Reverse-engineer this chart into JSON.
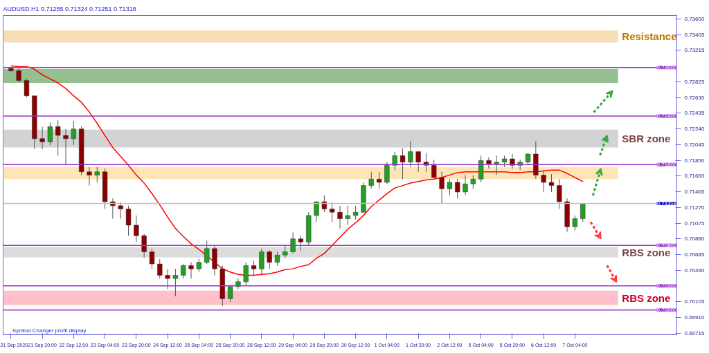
{
  "chart_data": {
    "type": "candlestick",
    "title": "AUDUSD.H1  0.71255 0.71324 0.71251 0.71318",
    "categories": [
      "21 Sep 2020",
      null,
      null,
      null,
      "21 Sep 20:00",
      null,
      null,
      null,
      "22 Sep 12:00",
      null,
      null,
      null,
      "23 Sep 04:00",
      null,
      null,
      null,
      "23 Sep 20:00",
      null,
      null,
      null,
      "24 Sep 12:00",
      null,
      null,
      null,
      "25 Sep 04:00",
      null,
      null,
      null,
      "25 Sep 20:00",
      null,
      null,
      null,
      "28 Sep 12:00",
      null,
      null,
      null,
      "29 Sep 04:00",
      null,
      null,
      null,
      "29 Sep 20:00",
      null,
      null,
      null,
      "30 Sep 12:00",
      null,
      null,
      null,
      "1 Oct 04:00",
      null,
      null,
      null,
      "1 Oct 20:00",
      null,
      null,
      null,
      "2 Oct 12:00",
      null,
      null,
      null,
      "5 Oct 04:00",
      null,
      null,
      null,
      "5 Oct 20:00",
      null,
      null,
      null,
      "6 Oct 12:00",
      null,
      null,
      null,
      "7 Oct 04:00",
      null
    ],
    "ohlc": [
      [
        0.7299,
        0.73,
        0.7294,
        0.7296
      ],
      [
        0.7296,
        0.73,
        0.7282,
        0.7284
      ],
      [
        0.7284,
        0.7286,
        0.7263,
        0.7265
      ],
      [
        0.7265,
        0.7265,
        0.7199,
        0.7212
      ],
      [
        0.7212,
        0.7227,
        0.7199,
        0.7208
      ],
      [
        0.7208,
        0.7232,
        0.7204,
        0.7227
      ],
      [
        0.7227,
        0.7235,
        0.7191,
        0.7216
      ],
      [
        0.7216,
        0.7224,
        0.7179,
        0.7212
      ],
      [
        0.7212,
        0.7234,
        0.7204,
        0.7224
      ],
      [
        0.7224,
        0.7227,
        0.7167,
        0.7171
      ],
      [
        0.7171,
        0.7177,
        0.7154,
        0.7167
      ],
      [
        0.7167,
        0.7177,
        0.7158,
        0.7171
      ],
      [
        0.7171,
        0.7175,
        0.7125,
        0.7134
      ],
      [
        0.7134,
        0.7138,
        0.7113,
        0.7129
      ],
      [
        0.7129,
        0.7133,
        0.7113,
        0.7125
      ],
      [
        0.7125,
        0.7129,
        0.7092,
        0.7105
      ],
      [
        0.7105,
        0.7117,
        0.7084,
        0.7092
      ],
      [
        0.7092,
        0.7094,
        0.7065,
        0.7072
      ],
      [
        0.7072,
        0.7076,
        0.7051,
        0.7057
      ],
      [
        0.7057,
        0.7063,
        0.7039,
        0.7043
      ],
      [
        0.7043,
        0.7051,
        0.7026,
        0.7039
      ],
      [
        0.7039,
        0.7051,
        0.7017,
        0.7043
      ],
      [
        0.7043,
        0.7057,
        0.7039,
        0.7055
      ],
      [
        0.7055,
        0.7059,
        0.7039,
        0.7051
      ],
      [
        0.7051,
        0.7063,
        0.7047,
        0.7059
      ],
      [
        0.7059,
        0.7086,
        0.7057,
        0.7076
      ],
      [
        0.7076,
        0.708,
        0.7043,
        0.7051
      ],
      [
        0.7051,
        0.7055,
        0.7005,
        0.7014
      ],
      [
        0.7014,
        0.703,
        0.701,
        0.7029
      ],
      [
        0.7029,
        0.7039,
        0.7026,
        0.7035
      ],
      [
        0.7035,
        0.7059,
        0.7031,
        0.7055
      ],
      [
        0.7055,
        0.7061,
        0.7043,
        0.7051
      ],
      [
        0.7051,
        0.7076,
        0.7043,
        0.7072
      ],
      [
        0.7072,
        0.7074,
        0.7051,
        0.7059
      ],
      [
        0.7059,
        0.7072,
        0.7055,
        0.7068
      ],
      [
        0.7068,
        0.708,
        0.7064,
        0.7072
      ],
      [
        0.7072,
        0.7096,
        0.707,
        0.7088
      ],
      [
        0.7088,
        0.7092,
        0.7073,
        0.7084
      ],
      [
        0.7084,
        0.7121,
        0.708,
        0.7117
      ],
      [
        0.7117,
        0.7134,
        0.7109,
        0.7134
      ],
      [
        0.7134,
        0.7142,
        0.7121,
        0.7125
      ],
      [
        0.7125,
        0.7133,
        0.7109,
        0.7121
      ],
      [
        0.7121,
        0.7129,
        0.7101,
        0.7113
      ],
      [
        0.7113,
        0.7129,
        0.7105,
        0.7117
      ],
      [
        0.7117,
        0.7129,
        0.7112,
        0.7121
      ],
      [
        0.7121,
        0.7158,
        0.712,
        0.7154
      ],
      [
        0.7154,
        0.7171,
        0.715,
        0.7162
      ],
      [
        0.7162,
        0.7171,
        0.715,
        0.7158
      ],
      [
        0.7158,
        0.7183,
        0.7156,
        0.7179
      ],
      [
        0.7179,
        0.7196,
        0.7173,
        0.7191
      ],
      [
        0.7191,
        0.72,
        0.7162,
        0.7183
      ],
      [
        0.7183,
        0.7209,
        0.7177,
        0.7196
      ],
      [
        0.7196,
        0.7196,
        0.7171,
        0.7183
      ],
      [
        0.7183,
        0.7194,
        0.7171,
        0.7179
      ],
      [
        0.7179,
        0.7186,
        0.7163,
        0.7164
      ],
      [
        0.7164,
        0.7171,
        0.7132,
        0.715
      ],
      [
        0.715,
        0.7162,
        0.7142,
        0.7158
      ],
      [
        0.7158,
        0.7162,
        0.7138,
        0.7146
      ],
      [
        0.7146,
        0.7167,
        0.7142,
        0.7156
      ],
      [
        0.7156,
        0.7167,
        0.715,
        0.7162
      ],
      [
        0.7162,
        0.7191,
        0.7158,
        0.7185
      ],
      [
        0.7185,
        0.7189,
        0.7175,
        0.7181
      ],
      [
        0.7181,
        0.7191,
        0.7167,
        0.7183
      ],
      [
        0.7183,
        0.7191,
        0.7177,
        0.7187
      ],
      [
        0.7187,
        0.7193,
        0.7175,
        0.7179
      ],
      [
        0.7179,
        0.7186,
        0.7173,
        0.7183
      ],
      [
        0.7183,
        0.7194,
        0.7179,
        0.7193
      ],
      [
        0.7193,
        0.7209,
        0.7162,
        0.7167
      ],
      [
        0.7167,
        0.7173,
        0.7146,
        0.7158
      ],
      [
        0.7158,
        0.7168,
        0.7146,
        0.7154
      ],
      [
        0.7154,
        0.7162,
        0.7125,
        0.7134
      ],
      [
        0.7134,
        0.7138,
        0.7097,
        0.7103
      ],
      [
        0.7103,
        0.7117,
        0.7098,
        0.7113
      ],
      [
        0.7113,
        0.71324,
        0.7109,
        0.71318
      ]
    ],
    "colors": [
      "#8b0000",
      "#8b0000",
      "#8b0000",
      "#8b0000",
      "#8b0000",
      "#22a022",
      "#8b0000",
      "#8b0000",
      "#22a022",
      "#8b0000",
      "#8b0000",
      "#22a022",
      "#8b0000",
      "#8b0000",
      "#8b0000",
      "#8b0000",
      "#8b0000",
      "#8b0000",
      "#8b0000",
      "#8b0000",
      "#8b0000",
      "#22a022",
      "#22a022",
      "#8b0000",
      "#22a022",
      "#22a022",
      "#8b0000",
      "#8b0000",
      "#22a022",
      "#22a022",
      "#22a022",
      "#8b0000",
      "#22a022",
      "#8b0000",
      "#22a022",
      "#22a022",
      "#22a022",
      "#8b0000",
      "#22a022",
      "#22a022",
      "#8b0000",
      "#8b0000",
      "#8b0000",
      "#22a022",
      "#22a022",
      "#22a022",
      "#22a022",
      "#8b0000",
      "#22a022",
      "#22a022",
      "#8b0000",
      "#22a022",
      "#8b0000",
      "#8b0000",
      "#8b0000",
      "#8b0000",
      "#22a022",
      "#8b0000",
      "#22a022",
      "#22a022",
      "#22a022",
      "#8b0000",
      "#22a022",
      "#22a022",
      "#8b0000",
      "#22a022",
      "#22a022",
      "#8b0000",
      "#8b0000",
      "#8b0000",
      "#8b0000",
      "#8b0000",
      "#22a022",
      "#22a022"
    ],
    "series": [
      {
        "type": "line",
        "color": "#ff0000",
        "values": [
          0.7302,
          0.7301,
          0.7301,
          0.7298,
          0.7291,
          0.7286,
          0.7281,
          0.7274,
          0.7265,
          0.7257,
          0.7245,
          0.7231,
          0.7216,
          0.7201,
          0.719,
          0.7179,
          0.7167,
          0.7157,
          0.7144,
          0.713,
          0.7115,
          0.7101,
          0.7091,
          0.7082,
          0.7075,
          0.7067,
          0.7059,
          0.7051,
          0.7047,
          0.7044,
          0.7043,
          0.7043,
          0.7044,
          0.7045,
          0.7047,
          0.705,
          0.7051,
          0.7054,
          0.7056,
          0.7064,
          0.707,
          0.708,
          0.709,
          0.71,
          0.7108,
          0.7117,
          0.7128,
          0.7136,
          0.7144,
          0.7151,
          0.7154,
          0.7157,
          0.7159,
          0.7161,
          0.7162,
          0.7164,
          0.7167,
          0.717,
          0.7171,
          0.7171,
          0.7171,
          0.7171,
          0.7171,
          0.7171,
          0.717,
          0.717,
          0.7171,
          0.7171,
          0.7172,
          0.7173,
          0.7173,
          0.7169,
          0.7164,
          0.7159
        ]
      }
    ],
    "ylim": [
      0.69695,
      0.73643
    ],
    "yticks": [
      {
        "value": 0.736,
        "label": "0.73600"
      },
      0.73405,
      0.73215,
      0.72825,
      {
        "value": 0.7263,
        "label": "0.72630"
      },
      0.72435,
      {
        "value": 0.7224,
        "label": "0.72240"
      },
      0.72045,
      {
        "value": 0.7185,
        "label": "0.71850"
      },
      {
        "value": 0.7166,
        "label": "0.71660"
      },
      0.71465,
      {
        "value": 0.7127,
        "label": "0.71270"
      },
      0.71075,
      {
        "value": 0.7088,
        "label": "0.70880"
      },
      0.70685,
      {
        "value": 0.7049,
        "label": "0.70490"
      },
      0.70105,
      {
        "value": 0.6991,
        "label": "0.69910"
      },
      0.69715
    ],
    "ref_lines": [
      {
        "axis": "y",
        "value": 0.73,
        "label": "0.73000",
        "color": "#9933cc"
      },
      {
        "axis": "y",
        "value": 0.724,
        "label": "0.72400",
        "color": "#9933cc"
      },
      {
        "axis": "y",
        "value": 0.718,
        "label": "0.71800",
        "color": "#9933cc"
      },
      {
        "axis": "y",
        "value": 0.71318,
        "label": "0.71318",
        "color": "#c0c0c0"
      },
      {
        "axis": "y",
        "value": 0.708,
        "label": "0.70800",
        "color": "#9933cc"
      },
      {
        "axis": "y",
        "value": 0.703,
        "label": "0.70300",
        "color": "#9933cc"
      },
      {
        "axis": "y",
        "value": 0.7,
        "label": "0.70000",
        "color": "#9933cc"
      }
    ],
    "bands": [
      {
        "axis": "y",
        "from": 0.7331,
        "to": 0.7346,
        "label": "Resistance",
        "color": "#f8deb5"
      },
      {
        "axis": "y",
        "from": 0.7281,
        "to": 0.7298,
        "color": "#93c08e"
      },
      {
        "axis": "y",
        "from": 0.7201,
        "to": 0.7223,
        "label": "SBR zone",
        "color": "#d3d3d3"
      },
      {
        "axis": "y",
        "from": 0.7162,
        "to": 0.7177,
        "color": "#fde5b7"
      },
      {
        "axis": "y",
        "from": 0.7065,
        "to": 0.7078,
        "label": "RBS zone",
        "color": "#dcdcdc"
      },
      {
        "axis": "y",
        "from": 0.7006,
        "to": 0.7024,
        "label": "RBS zone",
        "color": "#ffc0cb"
      }
    ],
    "annotations": [
      "Symbol Changer profit display"
    ],
    "grid": false
  }
}
